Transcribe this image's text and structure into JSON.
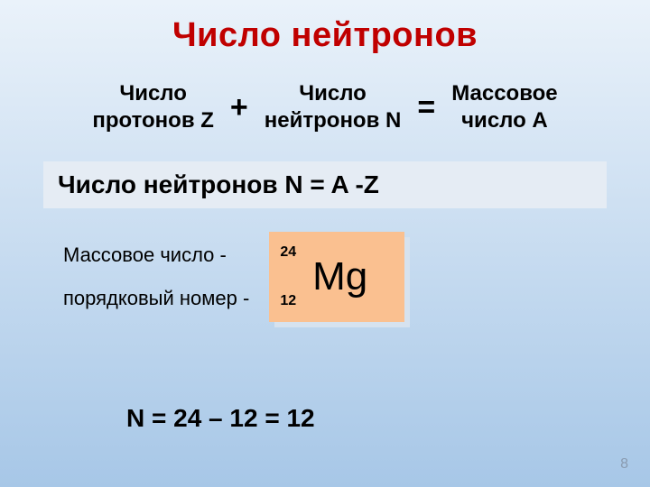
{
  "title": "Число нейтронов",
  "formula": {
    "term1_line1": "Число",
    "term1_line2": "протонов Z",
    "plus": "+",
    "term2_line1": "Число",
    "term2_line2": "нейтронов N",
    "equals": "=",
    "term3_line1": "Массовое",
    "term3_line2": "число А"
  },
  "box_formula": "Число нейтронов   N = A -Z",
  "labels": {
    "mass": "Массовое число -",
    "ordinal": "порядковый номер -"
  },
  "element": {
    "mass_number": "24",
    "atomic_number": "12",
    "symbol": "Mg",
    "face_color": "#fac090",
    "shadow_color": "#d6e2ef"
  },
  "calculation": "N = 24 – 12 = 12",
  "page_number": "8",
  "colors": {
    "title": "#c00000",
    "bg_top": "#eaf2fa",
    "bg_bottom": "#a7c7e7",
    "box_bg": "#e5ecf4",
    "text": "#000000",
    "page_num": "#8a9bb0"
  }
}
